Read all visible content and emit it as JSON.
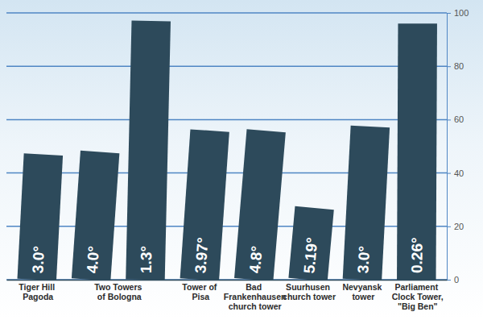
{
  "chart_data": {
    "type": "bar",
    "categories": [
      "Tiger Hill Pagoda",
      "Two Towers of Bologna",
      null,
      "Tower of Pisa",
      "Bad Frankenhausen church tower",
      "Suurhusen church tower",
      "Nevyansk tower",
      "Parliament Clock Tower, \"Big Ben\""
    ],
    "values": [
      47,
      48,
      97,
      56,
      56,
      27,
      57.5,
      96
    ],
    "tilt_values": [
      3.0,
      4.0,
      1.3,
      3.97,
      4.8,
      5.19,
      3.0,
      0.26
    ],
    "tilt_labels": [
      "3.0°",
      "4.0°",
      "1.3°",
      "3.97°",
      "4.8°",
      "5.19°",
      "3.0°",
      "0.26°"
    ],
    "color": "#2d4a5b",
    "ylim": [
      0,
      100
    ],
    "yticks": [
      0,
      20,
      40,
      60,
      80,
      100
    ],
    "grid": true
  }
}
